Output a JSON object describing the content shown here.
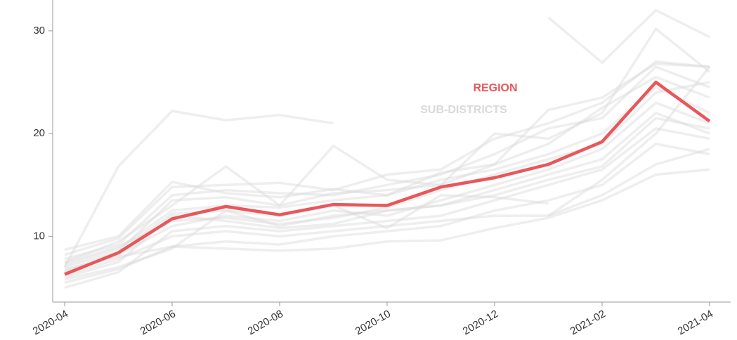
{
  "chart_data": {
    "type": "line",
    "categories": [
      "2020-04",
      null,
      "2020-06",
      null,
      "2020-08",
      null,
      "2020-10",
      null,
      "2020-12",
      null,
      "2021-02",
      null,
      "2021-04"
    ],
    "ylim": [
      3.6,
      33
    ],
    "yticks": [
      10,
      20,
      30
    ],
    "series": [
      {
        "name": "REGION",
        "color": "#e8575a",
        "values": [
          6.3,
          8.4,
          11.7,
          12.9,
          12.1,
          13.1,
          13.0,
          14.8,
          15.7,
          17.0,
          19.2,
          25.0,
          21.2
        ]
      }
    ],
    "background_series": {
      "name": "SUB-DISTRICTS",
      "color": "#d9d9d9",
      "lines": [
        [
          7.0,
          16.8,
          22.2,
          21.3,
          21.8,
          21.0,
          null,
          null,
          null,
          null,
          null,
          null,
          null
        ],
        [
          null,
          null,
          null,
          null,
          null,
          null,
          null,
          null,
          null,
          31.3,
          26.9,
          32.0,
          29.4
        ],
        [
          8.7,
          10.0,
          15.3,
          14.2,
          13.8,
          14.6,
          14.0,
          16.2,
          17.0,
          22.3,
          23.5,
          26.8,
          26.5
        ],
        [
          7.5,
          9.5,
          13.0,
          16.8,
          13.0,
          18.8,
          15.5,
          15.0,
          20.0,
          19.5,
          22.0,
          30.2,
          26.0
        ],
        [
          6.0,
          7.5,
          12.0,
          11.5,
          10.8,
          11.2,
          12.5,
          13.0,
          14.5,
          16.0,
          17.5,
          22.0,
          20.0
        ],
        [
          5.5,
          6.8,
          9.0,
          9.5,
          9.2,
          10.0,
          10.5,
          11.0,
          12.5,
          13.5,
          15.0,
          19.0,
          18.0
        ],
        [
          6.8,
          8.0,
          9.0,
          8.8,
          8.6,
          8.8,
          9.5,
          9.6,
          10.8,
          11.8,
          13.5,
          16.0,
          16.5
        ],
        [
          7.2,
          8.8,
          12.5,
          13.0,
          12.8,
          13.5,
          14.0,
          15.5,
          16.5,
          18.0,
          20.0,
          24.5,
          22.0
        ],
        [
          5.0,
          6.5,
          10.5,
          11.0,
          10.5,
          11.0,
          11.5,
          12.0,
          13.5,
          15.0,
          16.5,
          20.5,
          19.5
        ],
        [
          7.8,
          9.2,
          14.0,
          14.5,
          14.2,
          14.0,
          15.0,
          16.0,
          18.0,
          20.5,
          21.5,
          26.5,
          24.5
        ],
        [
          6.5,
          8.2,
          11.0,
          12.0,
          11.5,
          12.5,
          12.0,
          13.5,
          15.0,
          16.5,
          18.5,
          23.0,
          21.0
        ],
        [
          7.0,
          8.5,
          13.5,
          13.8,
          13.0,
          14.2,
          14.5,
          15.0,
          17.0,
          19.0,
          22.5,
          25.5,
          23.5
        ],
        [
          6.2,
          7.8,
          10.0,
          10.5,
          10.0,
          10.5,
          11.0,
          11.5,
          12.0,
          12.0,
          14.0,
          17.0,
          18.5
        ],
        [
          5.8,
          7.0,
          8.8,
          12.5,
          11.0,
          12.0,
          12.5,
          13.0,
          14.0,
          15.5,
          16.8,
          21.5,
          20.5
        ],
        [
          8.2,
          9.8,
          14.8,
          15.0,
          15.2,
          14.5,
          16.0,
          16.5,
          19.5,
          21.0,
          23.0,
          27.0,
          26.5
        ],
        [
          6.6,
          8.4,
          12.2,
          12.5,
          12.0,
          13.0,
          10.8,
          14.0,
          13.8,
          13.2,
          null,
          null,
          null
        ],
        [
          7.4,
          9.0,
          11.5,
          11.8,
          11.2,
          11.8,
          12.8,
          14.5,
          16.0,
          17.5,
          19.0,
          24.0,
          25.0
        ],
        [
          null,
          null,
          null,
          null,
          null,
          null,
          null,
          null,
          null,
          12.0,
          15.5,
          20.0,
          26.5
        ]
      ]
    }
  }
}
